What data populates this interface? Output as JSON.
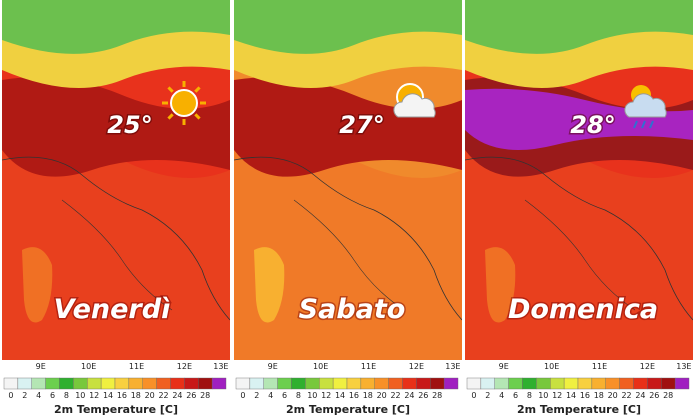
{
  "panels": [
    {
      "day": "Venerdì",
      "temperature": "25°"
    },
    {
      "day": "Sabato",
      "temperature": "27°"
    },
    {
      "day": "Domenica",
      "temperature": "28°"
    }
  ],
  "longitude_labels": [
    "9E",
    "10E",
    "11E",
    "12E",
    "13E"
  ],
  "colorbar": {
    "title": "2m Temperature [C]",
    "ticks": [
      0,
      2,
      4,
      6,
      8,
      10,
      12,
      14,
      16,
      18,
      20,
      22,
      24,
      26,
      28
    ],
    "colors": [
      "#f4f4f4",
      "#d9f2f2",
      "#b4e6b4",
      "#6ccf4e",
      "#2fb02f",
      "#78c83c",
      "#c8e040",
      "#f0f040",
      "#f8d040",
      "#f8b030",
      "#f89028",
      "#f06020",
      "#e83018",
      "#c81818",
      "#a01010",
      "#a020c0"
    ]
  }
}
